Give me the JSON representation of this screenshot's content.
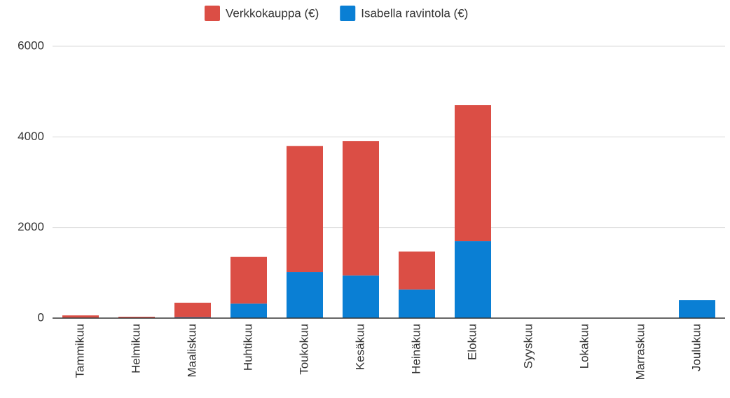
{
  "chart_data": {
    "type": "stacked_bar",
    "categories": [
      "Tammikuu",
      "Helmikuu",
      "Maaliskuu",
      "Huhtikuu",
      "Toukokuu",
      "Kesäkuu",
      "Heinäkuu",
      "Elokuu",
      "Syyskuu",
      "Lokakuu",
      "Marraskuu",
      "Joulukuu"
    ],
    "series": [
      {
        "name": "Verkkokauppa (€)",
        "color": "#db4e45",
        "values": [
          50,
          30,
          320,
          1030,
          2780,
          2970,
          840,
          3000,
          0,
          0,
          0,
          0
        ]
      },
      {
        "name": "Isabella ravintola (€)",
        "color": "#0a7fd4",
        "values": [
          10,
          0,
          20,
          320,
          1020,
          940,
          630,
          1700,
          0,
          0,
          0,
          400
        ]
      }
    ],
    "ylim": [
      0,
      6000
    ],
    "yticks": [
      0,
      2000,
      4000,
      6000
    ],
    "grid": true,
    "legend": "top"
  }
}
